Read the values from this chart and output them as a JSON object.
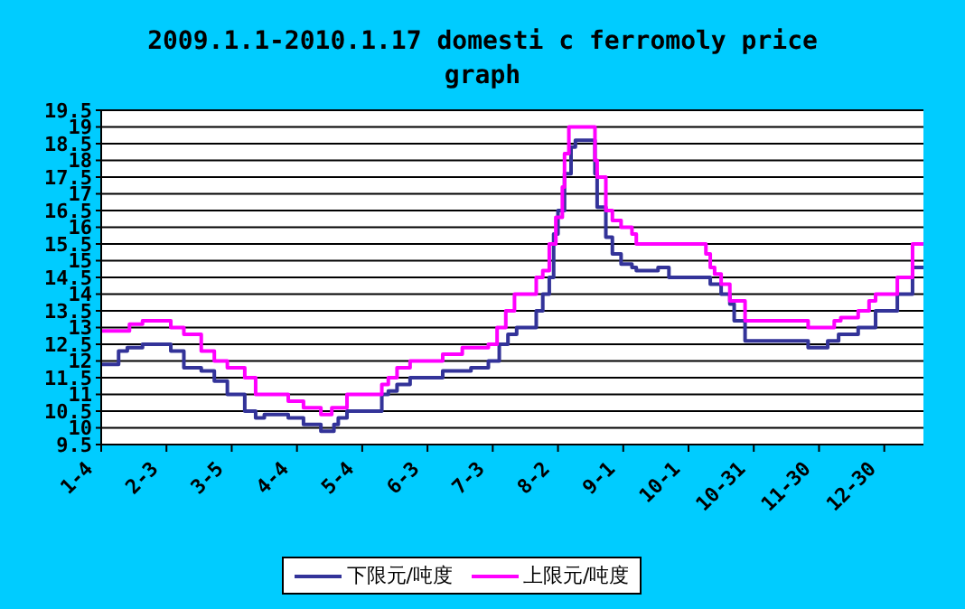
{
  "chart_data": {
    "type": "step",
    "title": "2009.1.1-2010.1.17 domesti c ferromoly price graph",
    "xlim": [
      "2009-01-04",
      "2010-01-17"
    ],
    "xticks": [
      {
        "value": "2009-01-04",
        "label": "1-4"
      },
      {
        "value": "2009-02-03",
        "label": "2-3"
      },
      {
        "value": "2009-03-05",
        "label": "3-5"
      },
      {
        "value": "2009-04-04",
        "label": "4-4"
      },
      {
        "value": "2009-05-04",
        "label": "5-4"
      },
      {
        "value": "2009-06-03",
        "label": "6-3"
      },
      {
        "value": "2009-07-03",
        "label": "7-3"
      },
      {
        "value": "2009-08-02",
        "label": "8-2"
      },
      {
        "value": "2009-09-01",
        "label": "9-1"
      },
      {
        "value": "2009-10-01",
        "label": "10-1"
      },
      {
        "value": "2009-10-31",
        "label": "10-31"
      },
      {
        "value": "2009-11-30",
        "label": "11-30"
      },
      {
        "value": "2009-12-30",
        "label": "12-30"
      }
    ],
    "ylim": [
      9.5,
      19.5
    ],
    "yticks": [
      9.5,
      10,
      10.5,
      11,
      11.5,
      12,
      12.5,
      13,
      13.5,
      14,
      14.5,
      15,
      15.5,
      16,
      16.5,
      17,
      17.5,
      18,
      18.5,
      19,
      19.5
    ],
    "grid": "y",
    "legend": "bottom",
    "series": [
      {
        "name": "下限元/吨度",
        "color": "#333399",
        "x": [
          "2009-01-04",
          "2009-01-12",
          "2009-01-16",
          "2009-01-23",
          "2009-02-05",
          "2009-02-11",
          "2009-02-19",
          "2009-02-25",
          "2009-03-03",
          "2009-03-11",
          "2009-03-16",
          "2009-03-20",
          "2009-03-31",
          "2009-04-07",
          "2009-04-15",
          "2009-04-21",
          "2009-04-23",
          "2009-04-27",
          "2009-05-13",
          "2009-05-16",
          "2009-05-20",
          "2009-05-26",
          "2009-06-10",
          "2009-06-23",
          "2009-07-01",
          "2009-07-06",
          "2009-07-10",
          "2009-07-14",
          "2009-07-23",
          "2009-07-26",
          "2009-07-29",
          "2009-07-31",
          "2009-08-02",
          "2009-08-05",
          "2009-08-08",
          "2009-08-10",
          "2009-08-19",
          "2009-08-20",
          "2009-08-24",
          "2009-08-27",
          "2009-08-31",
          "2009-09-05",
          "2009-09-07",
          "2009-09-17",
          "2009-09-22",
          "2009-10-11",
          "2009-10-16",
          "2009-10-20",
          "2009-10-22",
          "2009-10-27",
          "2009-11-25",
          "2009-12-04",
          "2009-12-09",
          "2009-12-18",
          "2009-12-26",
          "2010-01-05",
          "2010-01-12",
          "2010-01-17"
        ],
        "values": [
          11.9,
          12.3,
          12.4,
          12.5,
          12.3,
          11.8,
          11.7,
          11.4,
          11.0,
          10.5,
          10.3,
          10.4,
          10.3,
          10.1,
          9.9,
          10.1,
          10.3,
          10.5,
          11.0,
          11.1,
          11.3,
          11.5,
          11.7,
          11.8,
          12.0,
          12.5,
          12.8,
          13.0,
          13.5,
          14.0,
          14.5,
          15.8,
          16.5,
          17.6,
          18.4,
          18.6,
          17.6,
          16.6,
          15.7,
          15.2,
          14.9,
          14.8,
          14.7,
          14.8,
          14.5,
          14.3,
          14.0,
          13.7,
          13.2,
          12.6,
          12.4,
          12.6,
          12.8,
          13.0,
          13.5,
          14.0,
          14.8,
          14.8
        ]
      },
      {
        "name": "上限元/吨度",
        "color": "#ff00ff",
        "x": [
          "2009-01-04",
          "2009-01-17",
          "2009-01-23",
          "2009-02-05",
          "2009-02-11",
          "2009-02-19",
          "2009-02-25",
          "2009-03-03",
          "2009-03-11",
          "2009-03-16",
          "2009-03-31",
          "2009-04-07",
          "2009-04-15",
          "2009-04-20",
          "2009-04-27",
          "2009-05-13",
          "2009-05-16",
          "2009-05-20",
          "2009-05-26",
          "2009-06-10",
          "2009-06-19",
          "2009-07-01",
          "2009-07-05",
          "2009-07-09",
          "2009-07-13",
          "2009-07-23",
          "2009-07-26",
          "2009-07-29",
          "2009-08-01",
          "2009-08-04",
          "2009-08-05",
          "2009-08-07",
          "2009-08-19",
          "2009-08-20",
          "2009-08-24",
          "2009-08-27",
          "2009-08-31",
          "2009-09-05",
          "2009-09-07",
          "2009-10-09",
          "2009-10-11",
          "2009-10-13",
          "2009-10-16",
          "2009-10-20",
          "2009-10-27",
          "2009-11-25",
          "2009-12-07",
          "2009-12-10",
          "2009-12-18",
          "2009-12-23",
          "2009-12-26",
          "2010-01-05",
          "2010-01-12",
          "2010-01-17"
        ],
        "values": [
          12.9,
          13.1,
          13.2,
          13.0,
          12.8,
          12.3,
          12.0,
          11.8,
          11.5,
          11.0,
          10.8,
          10.6,
          10.4,
          10.6,
          11.0,
          11.3,
          11.5,
          11.8,
          12.0,
          12.2,
          12.4,
          12.5,
          13.0,
          13.5,
          14.0,
          14.5,
          14.7,
          15.5,
          16.3,
          17.2,
          18.2,
          19.0,
          18.0,
          17.5,
          16.5,
          16.2,
          16.0,
          15.8,
          15.5,
          15.2,
          14.8,
          14.6,
          14.3,
          13.8,
          13.2,
          13.0,
          13.2,
          13.3,
          13.5,
          13.8,
          14.0,
          14.5,
          15.5,
          15.5
        ]
      }
    ]
  }
}
